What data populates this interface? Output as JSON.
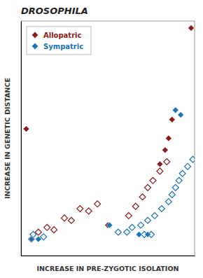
{
  "chart_data": {
    "type": "scatter",
    "title": "DROSOPHILA",
    "xlabel": "INCREASE IN PRE-ZYGOTIC ISOLATION",
    "ylabel": "INCREASE IN GENETIC DISTANCE",
    "xlim": [
      0,
      1
    ],
    "ylim": [
      0,
      1
    ],
    "tick_labels": false,
    "legend": "upper left",
    "series": [
      {
        "color": "#8B1A1A",
        "marker": "diamond-open",
        "x": [
          0.06,
          0.1,
          0.15,
          0.19,
          0.25,
          0.29,
          0.34,
          0.39,
          0.44,
          0.62,
          0.66,
          0.7,
          0.73,
          0.76,
          0.8,
          0.84
        ],
        "values": [
          0.07,
          0.1,
          0.12,
          0.11,
          0.16,
          0.15,
          0.2,
          0.19,
          0.22,
          0.17,
          0.21,
          0.25,
          0.29,
          0.32,
          0.36,
          0.4
        ]
      },
      {
        "color": "#1874b5",
        "marker": "diamond-open",
        "x": [
          0.07,
          0.13,
          0.56,
          0.61,
          0.64,
          0.69,
          0.73,
          0.77,
          0.81,
          0.85,
          0.87,
          0.89,
          0.91,
          0.93,
          0.96,
          0.99,
          0.71,
          0.75
        ],
        "values": [
          0.09,
          0.08,
          0.1,
          0.1,
          0.12,
          0.13,
          0.15,
          0.17,
          0.2,
          0.23,
          0.26,
          0.29,
          0.32,
          0.35,
          0.38,
          0.41,
          0.09,
          0.09
        ]
      },
      {
        "name": "Allopatric",
        "color": "#8B1A1A",
        "marker": "diamond",
        "x": [
          0.98,
          0.03,
          0.87,
          0.85,
          0.83,
          0.8,
          0.5
        ],
        "values": [
          0.97,
          0.54,
          0.58,
          0.5,
          0.45,
          0.39,
          0.13
        ]
      },
      {
        "name": "Sympatric",
        "color": "#1874b5",
        "marker": "diamond",
        "x": [
          0.06,
          0.1,
          0.51,
          0.68,
          0.73,
          0.89,
          0.92
        ],
        "values": [
          0.07,
          0.07,
          0.13,
          0.09,
          0.09,
          0.62,
          0.6
        ]
      }
    ]
  }
}
